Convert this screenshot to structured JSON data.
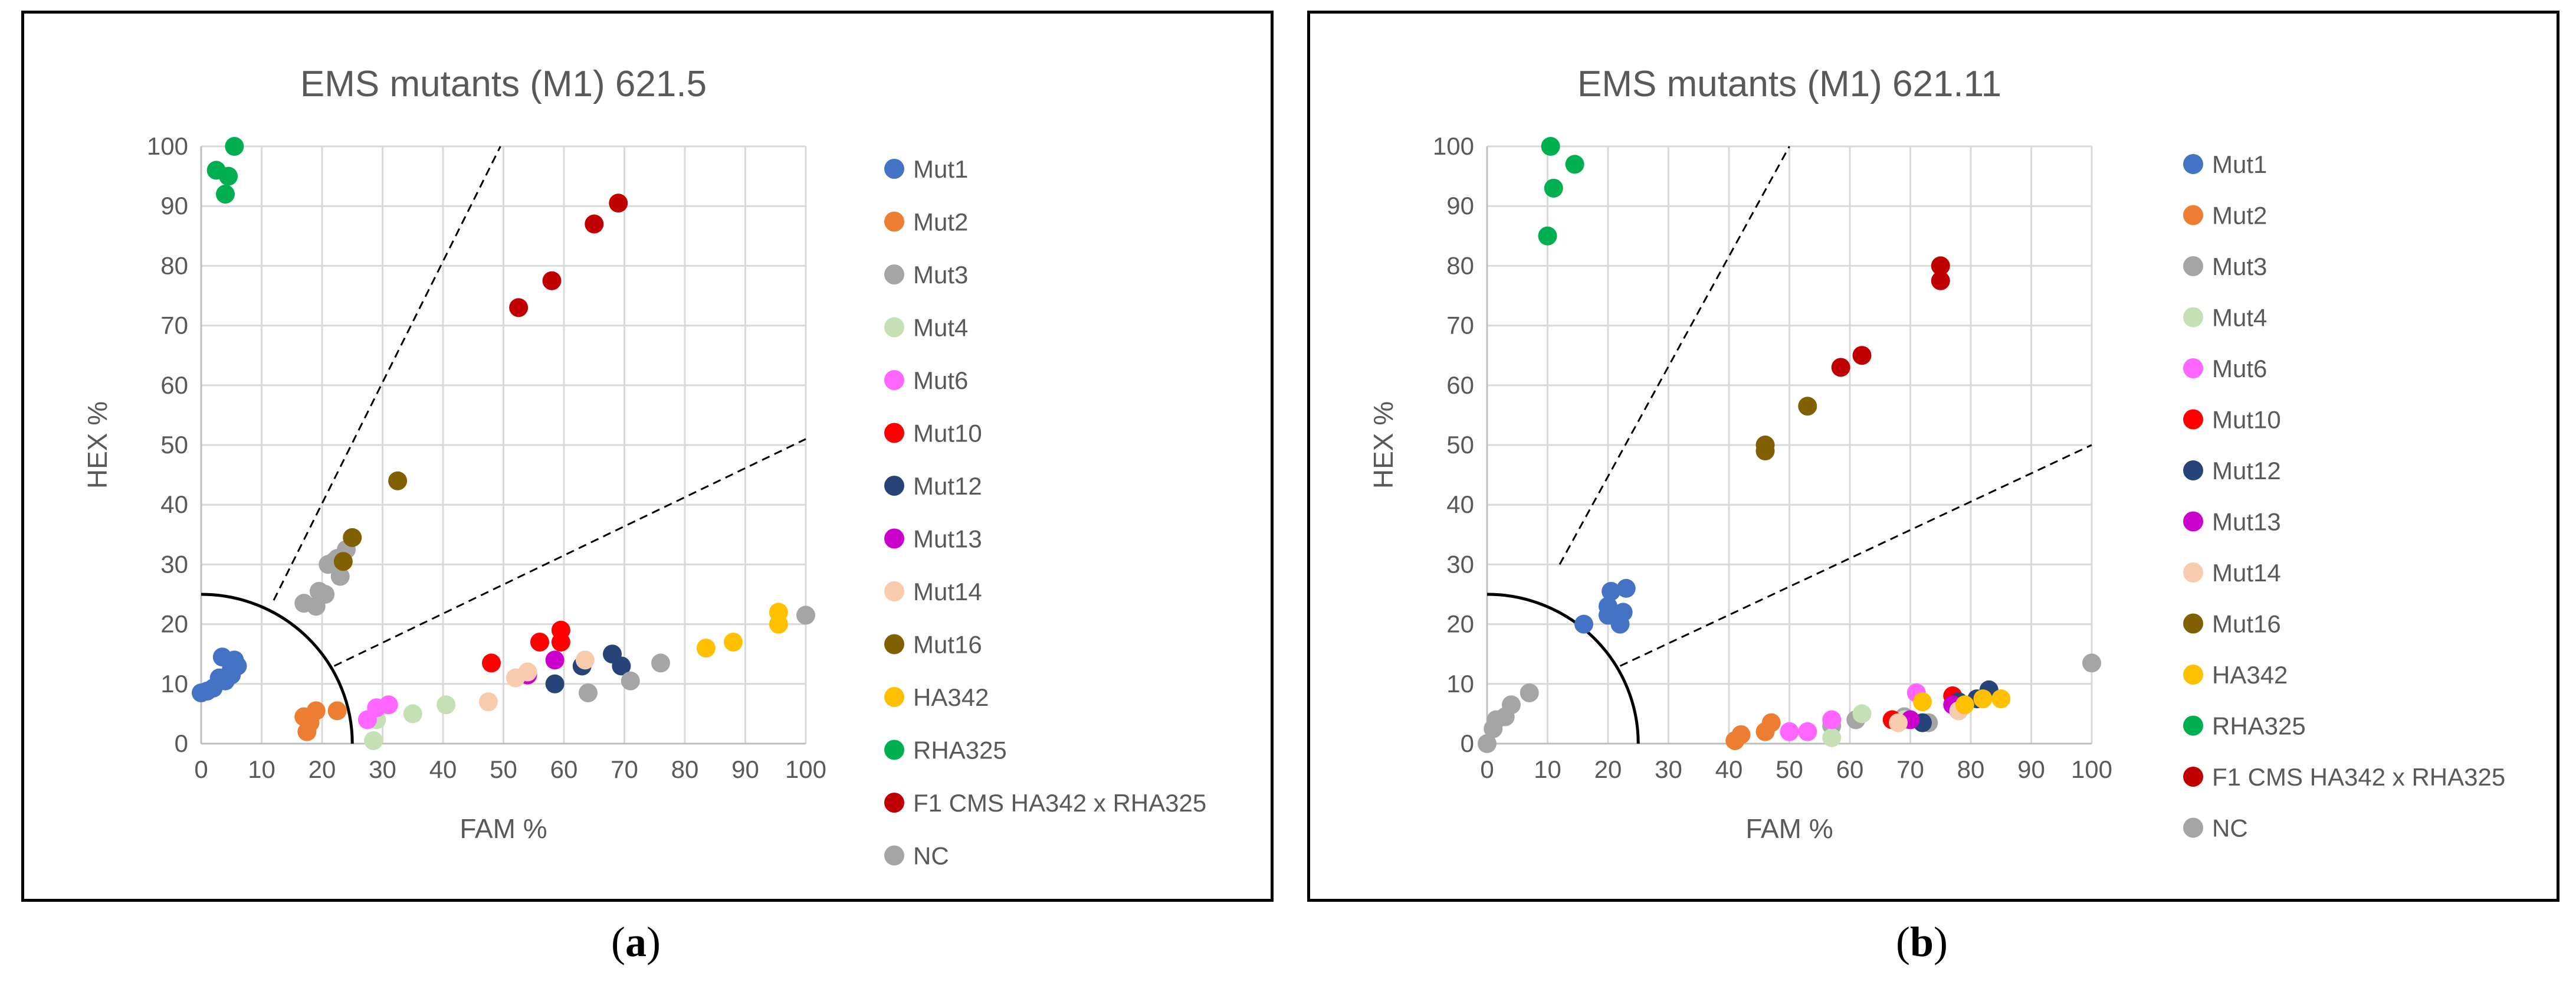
{
  "captions": {
    "a": "a",
    "b": "b"
  },
  "series_styles": [
    {
      "name": "Mut1",
      "color": "#4472C4"
    },
    {
      "name": "Mut2",
      "color": "#ED7D31"
    },
    {
      "name": "Mut3",
      "color": "#A5A5A5"
    },
    {
      "name": "Mut4",
      "color": "#C5E0B4"
    },
    {
      "name": "Mut6",
      "color": "#FF66FF"
    },
    {
      "name": "Mut10",
      "color": "#FF0000"
    },
    {
      "name": "Mut12",
      "color": "#264478"
    },
    {
      "name": "Mut13",
      "color": "#CC00CC"
    },
    {
      "name": "Mut14",
      "color": "#F8CBAD"
    },
    {
      "name": "Mut16",
      "color": "#806000"
    },
    {
      "name": "HA342",
      "color": "#FFC000"
    },
    {
      "name": "RHA325",
      "color": "#00B050"
    },
    {
      "name": "F1 CMS HA342 x RHA325",
      "color": "#C00000"
    },
    {
      "name": "NC",
      "color": "#A5A5A5"
    }
  ],
  "chart_data": [
    {
      "type": "scatter",
      "title": "EMS mutants (M1) 621.5",
      "xlabel": "FAM %",
      "ylabel": "HEX %",
      "xlim": [
        0,
        100
      ],
      "ylim": [
        0,
        100
      ],
      "xticks": [
        "0",
        "10",
        "20",
        "30",
        "40",
        "50",
        "60",
        "70",
        "80",
        "90",
        "100"
      ],
      "yticks": [
        "0",
        "10",
        "20",
        "30",
        "40",
        "50",
        "60",
        "70",
        "80",
        "90",
        "100"
      ],
      "legend_position": "right",
      "guides": {
        "circle_radius": 25,
        "upper_line": [
          [
            12,
            24
          ],
          [
            49.5,
            100
          ]
        ],
        "lower_line": [
          [
            22,
            13
          ],
          [
            100,
            51
          ]
        ]
      },
      "series": [
        {
          "name": "Mut1",
          "points": [
            [
              0,
              8.5
            ],
            [
              1,
              8.8
            ],
            [
              2,
              9.3
            ],
            [
              3,
              11
            ],
            [
              3.5,
              14.5
            ],
            [
              4,
              10.5
            ],
            [
              5,
              11.5
            ],
            [
              5,
              12.5
            ],
            [
              5.5,
              14
            ],
            [
              6,
              13
            ]
          ]
        },
        {
          "name": "Mut2",
          "points": [
            [
              17,
              4.5
            ],
            [
              17.5,
              2
            ],
            [
              18,
              3.5
            ],
            [
              19,
              5.5
            ],
            [
              22.5,
              5.5
            ]
          ]
        },
        {
          "name": "Mut3",
          "points": [
            [
              19,
              23
            ],
            [
              19.5,
              25.5
            ],
            [
              20.5,
              25
            ],
            [
              21,
              30
            ],
            [
              22,
              30.5
            ],
            [
              22.5,
              31
            ],
            [
              23,
              28
            ],
            [
              24,
              32.5
            ]
          ]
        },
        {
          "name": "Mut4",
          "points": [
            [
              28.5,
              0.5
            ],
            [
              29,
              4
            ],
            [
              35,
              5
            ],
            [
              40.5,
              6.5
            ]
          ]
        },
        {
          "name": "Mut6",
          "points": [
            [
              27.5,
              4
            ],
            [
              29,
              6
            ],
            [
              31,
              6.5
            ]
          ]
        },
        {
          "name": "Mut10",
          "points": [
            [
              48,
              13.5
            ],
            [
              56,
              17
            ],
            [
              59.5,
              17
            ],
            [
              59.5,
              19
            ]
          ]
        },
        {
          "name": "Mut12",
          "points": [
            [
              58.5,
              10
            ],
            [
              63,
              13
            ],
            [
              68,
              15
            ],
            [
              69.5,
              13
            ]
          ]
        },
        {
          "name": "Mut13",
          "points": [
            [
              54,
              11.5
            ],
            [
              58.5,
              14
            ]
          ]
        },
        {
          "name": "Mut14",
          "points": [
            [
              47.5,
              7
            ],
            [
              52,
              11
            ],
            [
              54,
              12
            ],
            [
              63.5,
              14
            ]
          ]
        },
        {
          "name": "Mut16",
          "points": [
            [
              23.5,
              30.5
            ],
            [
              25,
              34.5
            ],
            [
              32.5,
              44
            ]
          ]
        },
        {
          "name": "HA342",
          "points": [
            [
              83.5,
              16
            ],
            [
              88,
              17
            ],
            [
              95.5,
              20
            ],
            [
              95.5,
              22
            ]
          ]
        },
        {
          "name": "RHA325",
          "points": [
            [
              2.5,
              96
            ],
            [
              4,
              92
            ],
            [
              4.5,
              95
            ],
            [
              5.5,
              100
            ]
          ]
        },
        {
          "name": "F1 CMS HA342 x RHA325",
          "points": [
            [
              52.5,
              73
            ],
            [
              58,
              77.5
            ],
            [
              65,
              87
            ],
            [
              69,
              90.5
            ]
          ]
        },
        {
          "name": "NC",
          "points": [
            [
              17,
              23.5
            ],
            [
              64,
              8.5
            ],
            [
              71,
              10.5
            ],
            [
              76,
              13.5
            ],
            [
              100,
              21.5
            ]
          ]
        }
      ]
    },
    {
      "type": "scatter",
      "title": "EMS mutants (M1) 621.11",
      "xlabel": "FAM %",
      "ylabel": "HEX %",
      "xlim": [
        0,
        100
      ],
      "ylim": [
        0,
        100
      ],
      "xticks": [
        "0",
        "10",
        "20",
        "30",
        "40",
        "50",
        "60",
        "70",
        "80",
        "90",
        "100"
      ],
      "yticks": [
        "0",
        "10",
        "20",
        "30",
        "40",
        "50",
        "60",
        "70",
        "80",
        "90",
        "100"
      ],
      "legend_position": "right",
      "guides": {
        "circle_radius": 25,
        "upper_line": [
          [
            12,
            30
          ],
          [
            50,
            100
          ]
        ],
        "lower_line": [
          [
            22,
            13
          ],
          [
            100,
            50
          ]
        ]
      },
      "series": [
        {
          "name": "Mut1",
          "points": [
            [
              16,
              20
            ],
            [
              20,
              21.5
            ],
            [
              20,
              23
            ],
            [
              20.5,
              25.5
            ],
            [
              22,
              20
            ],
            [
              22.5,
              22
            ],
            [
              23,
              26
            ]
          ]
        },
        {
          "name": "Mut2",
          "points": [
            [
              41,
              0.5
            ],
            [
              42,
              1.5
            ],
            [
              46,
              2
            ],
            [
              47,
              3.5
            ]
          ]
        },
        {
          "name": "Mut3",
          "points": [
            [
              57,
              3
            ],
            [
              61,
              4
            ],
            [
              69,
              4.5
            ],
            [
              73,
              3.5
            ],
            [
              78,
              5.5
            ]
          ]
        },
        {
          "name": "Mut4",
          "points": [
            [
              57,
              1
            ],
            [
              62,
              5
            ],
            [
              69,
              4
            ]
          ]
        },
        {
          "name": "Mut6",
          "points": [
            [
              50,
              2
            ],
            [
              53,
              2
            ],
            [
              57,
              4
            ],
            [
              71,
              8.5
            ]
          ]
        },
        {
          "name": "Mut10",
          "points": [
            [
              67,
              4
            ],
            [
              77,
              8
            ]
          ]
        },
        {
          "name": "Mut12",
          "points": [
            [
              72,
              3.5
            ],
            [
              78,
              7
            ],
            [
              81,
              7.5
            ],
            [
              83,
              9
            ]
          ]
        },
        {
          "name": "Mut13",
          "points": [
            [
              70,
              4
            ],
            [
              77,
              6.5
            ]
          ]
        },
        {
          "name": "Mut14",
          "points": [
            [
              68,
              3.5
            ],
            [
              78,
              5.5
            ]
          ]
        },
        {
          "name": "Mut16",
          "points": [
            [
              46,
              49
            ],
            [
              46,
              50
            ],
            [
              53,
              56.5
            ]
          ]
        },
        {
          "name": "HA342",
          "points": [
            [
              72,
              7
            ],
            [
              79,
              6.5
            ],
            [
              82,
              7.5
            ],
            [
              85,
              7.5
            ]
          ]
        },
        {
          "name": "RHA325",
          "points": [
            [
              10,
              85
            ],
            [
              10.5,
              100
            ],
            [
              11,
              93
            ],
            [
              14.5,
              97
            ]
          ]
        },
        {
          "name": "F1 CMS HA342 x RHA325",
          "points": [
            [
              58.5,
              63
            ],
            [
              62,
              65
            ],
            [
              75,
              77.5
            ],
            [
              75,
              80
            ]
          ]
        },
        {
          "name": "NC",
          "points": [
            [
              0,
              0
            ],
            [
              1,
              2.5
            ],
            [
              1.5,
              4
            ],
            [
              3,
              4.5
            ],
            [
              4,
              6.5
            ],
            [
              7,
              8.5
            ],
            [
              100,
              13.5
            ]
          ]
        }
      ]
    }
  ]
}
